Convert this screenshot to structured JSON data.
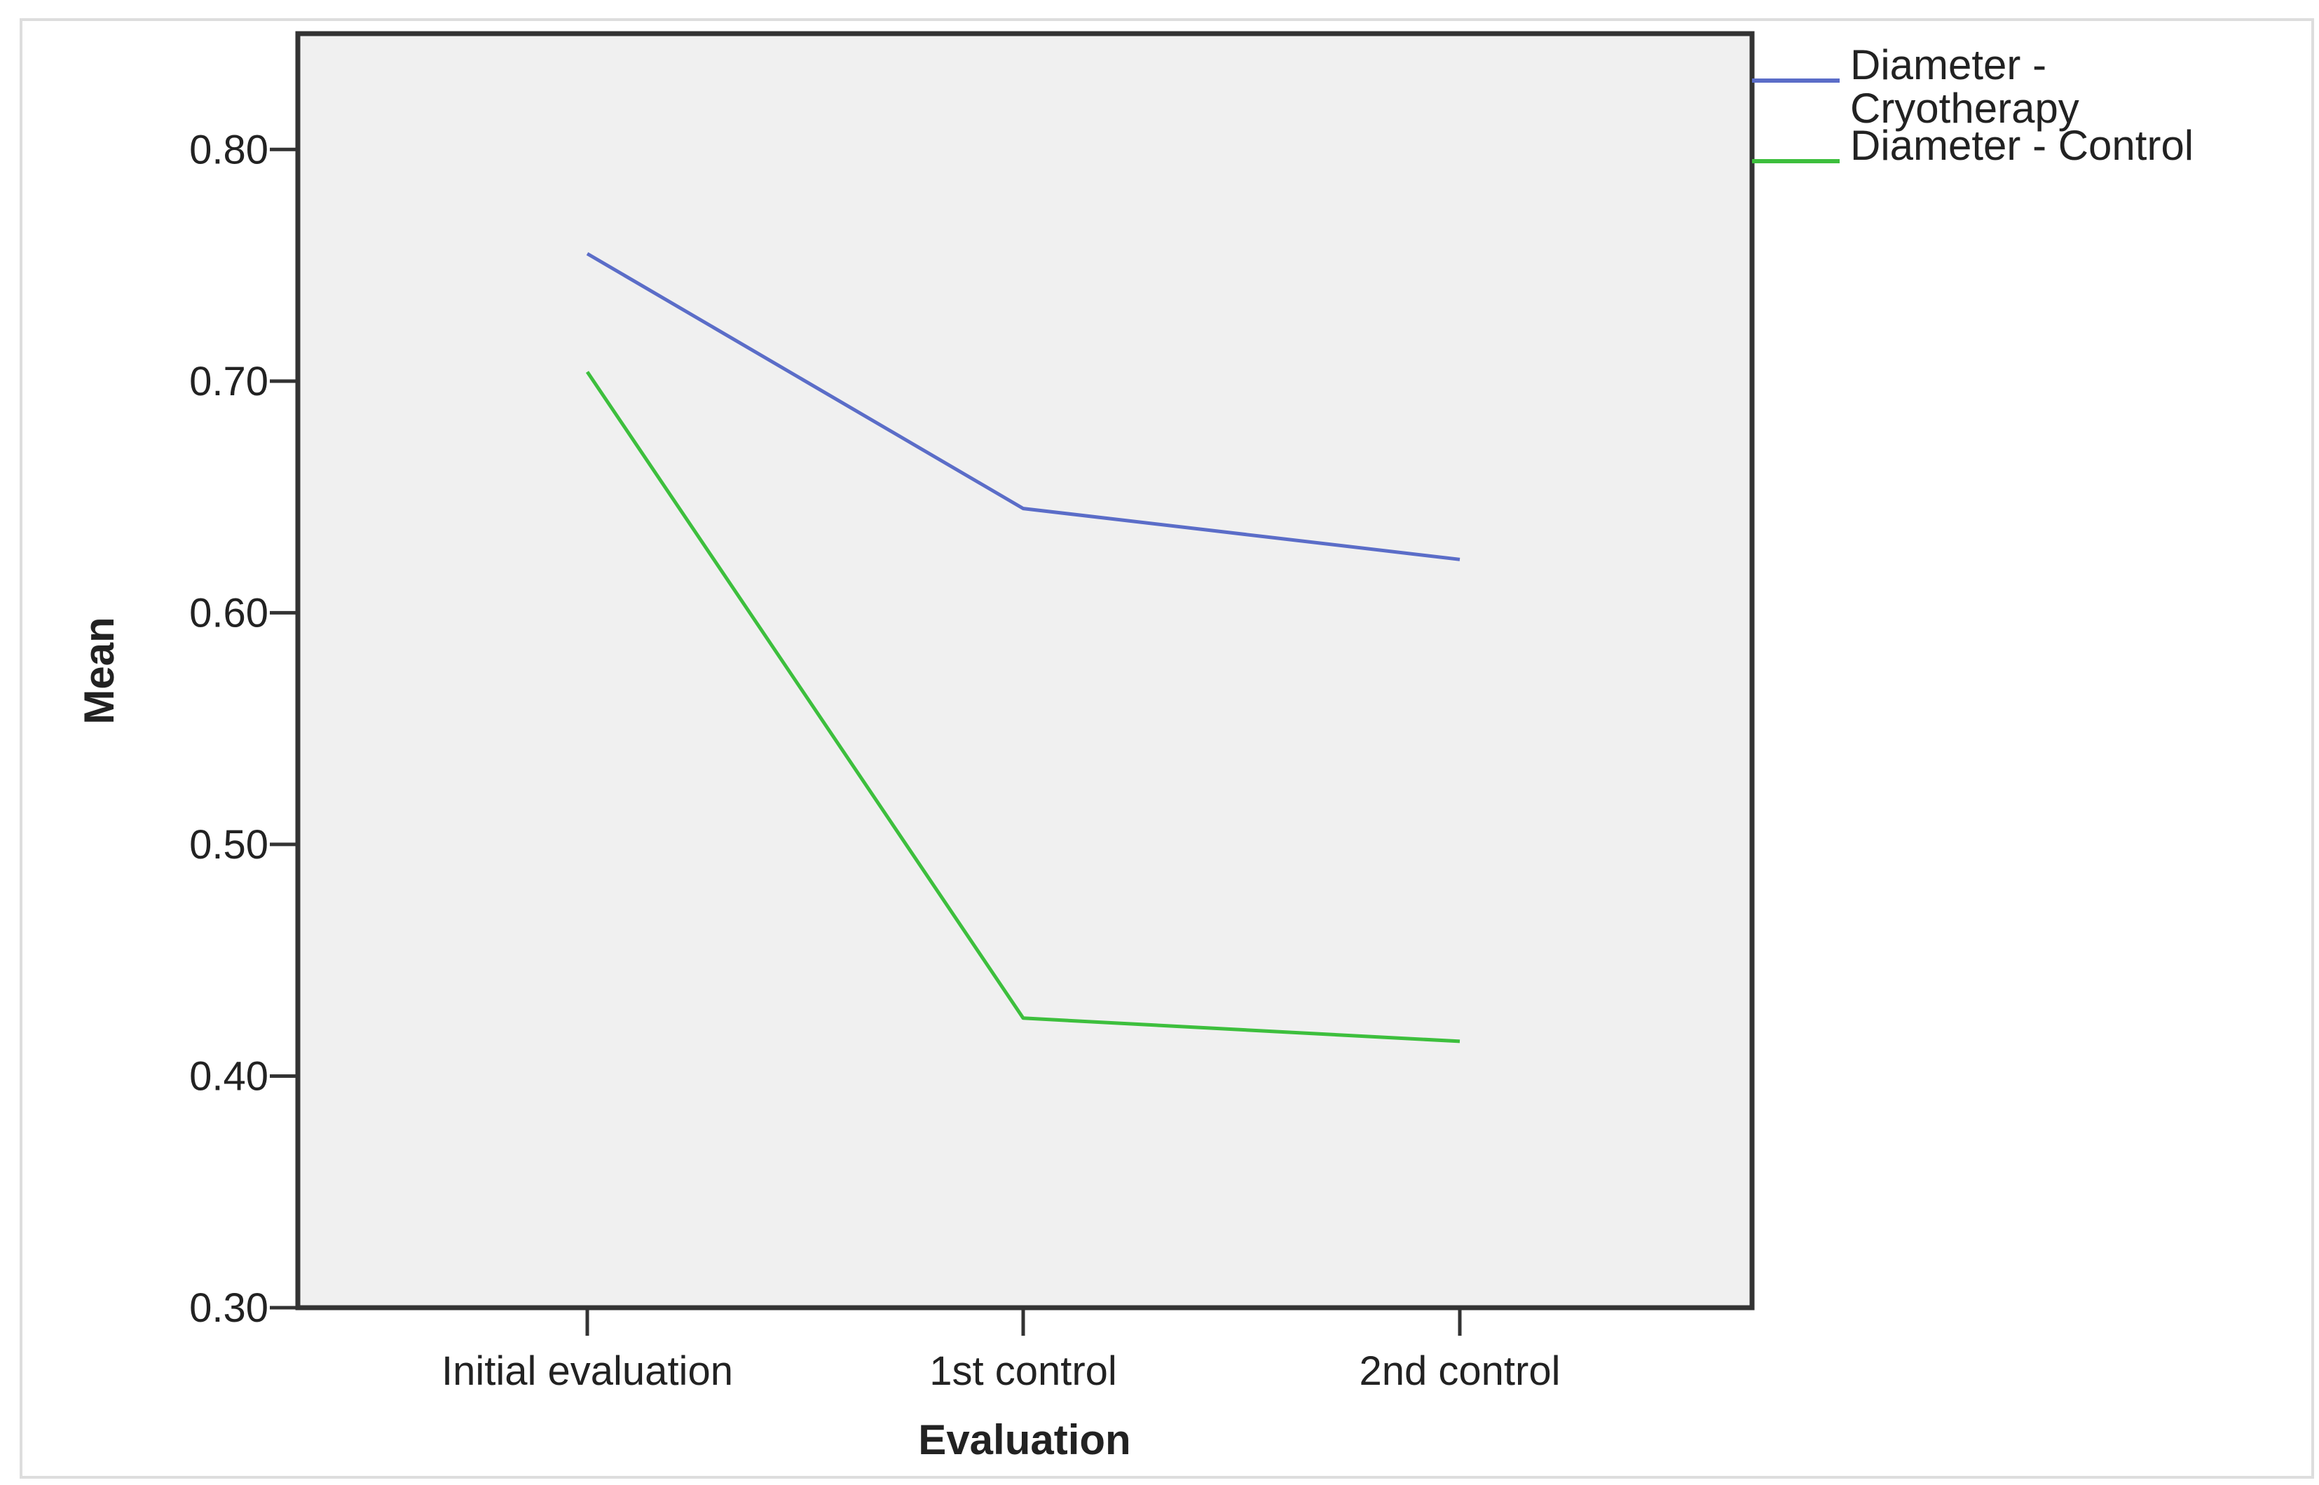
{
  "chart_data": {
    "type": "line",
    "title": "",
    "xlabel": "Evaluation",
    "ylabel": "Mean",
    "categories": [
      "Initial evaluation",
      "1st control",
      "2nd control"
    ],
    "ylim": [
      0.3,
      0.85
    ],
    "yticks": [
      "0.30",
      "0.40",
      "0.50",
      "0.60",
      "0.70",
      "0.80"
    ],
    "ytick_values": [
      0.3,
      0.4,
      0.5,
      0.6,
      0.7,
      0.8
    ],
    "grid": false,
    "legend_position": "top-right outside",
    "background": "#f0f0f0",
    "series": [
      {
        "name": "Diameter - Cryotherapy",
        "legend_lines": [
          "Diameter -",
          "Cryotherapy"
        ],
        "color": "#5b6dc8",
        "values": [
          0.755,
          0.645,
          0.623
        ]
      },
      {
        "name": "Diameter - Control",
        "legend_lines": [
          "Diameter - Control"
        ],
        "color": "#3dbf3d",
        "values": [
          0.704,
          0.425,
          0.415
        ]
      }
    ]
  }
}
